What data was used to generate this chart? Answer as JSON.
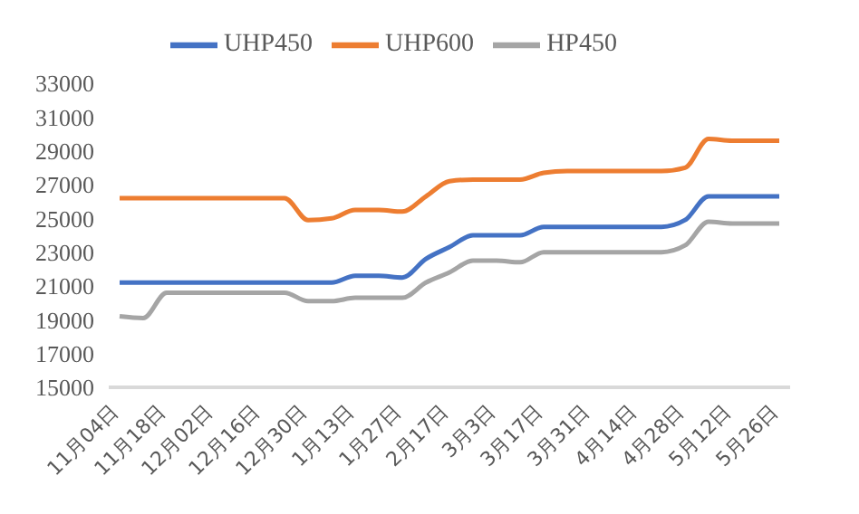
{
  "chart_data": {
    "type": "line",
    "categories": [
      "11月04日",
      null,
      "11月18日",
      null,
      "12月02日",
      null,
      "12月16日",
      null,
      "12月30日",
      null,
      "1月13日",
      null,
      "1月27日",
      null,
      "2月17日",
      null,
      "3月3日",
      null,
      "3月17日",
      null,
      "3月31日",
      null,
      "4月14日",
      null,
      "4月28日",
      null,
      "5月12日",
      null,
      "5月26日"
    ],
    "series": [
      {
        "name": "UHP450",
        "color": "#4472c4",
        "values": [
          21200,
          21200,
          21200,
          21200,
          21200,
          21200,
          21200,
          21200,
          21200,
          21200,
          21600,
          21600,
          21500,
          22600,
          23300,
          24000,
          24000,
          24000,
          24500,
          24500,
          24500,
          24500,
          24500,
          24500,
          24900,
          26300,
          26300,
          26300,
          26300
        ]
      },
      {
        "name": "UHP600",
        "color": "#ed7d31",
        "values": [
          26200,
          26200,
          26200,
          26200,
          26200,
          26200,
          26200,
          26200,
          24900,
          25000,
          25500,
          25500,
          25400,
          26300,
          27200,
          27300,
          27300,
          27300,
          27700,
          27800,
          27800,
          27800,
          27800,
          27800,
          28000,
          29700,
          29600,
          29600,
          29600
        ]
      },
      {
        "name": "HP450",
        "color": "#a5a5a5",
        "values": [
          19200,
          19100,
          20600,
          20600,
          20600,
          20600,
          20600,
          20600,
          20100,
          20100,
          20300,
          20300,
          20300,
          21200,
          21800,
          22500,
          22500,
          22400,
          23000,
          23000,
          23000,
          23000,
          23000,
          23000,
          23400,
          24800,
          24700,
          24700,
          24700
        ]
      }
    ],
    "ylim": [
      15000,
      33000
    ],
    "yticks": [
      15000,
      17000,
      19000,
      21000,
      23000,
      25000,
      27000,
      29000,
      31000,
      33000
    ],
    "grid": false,
    "legend": "top",
    "marker": "none",
    "line_style": "solid"
  }
}
